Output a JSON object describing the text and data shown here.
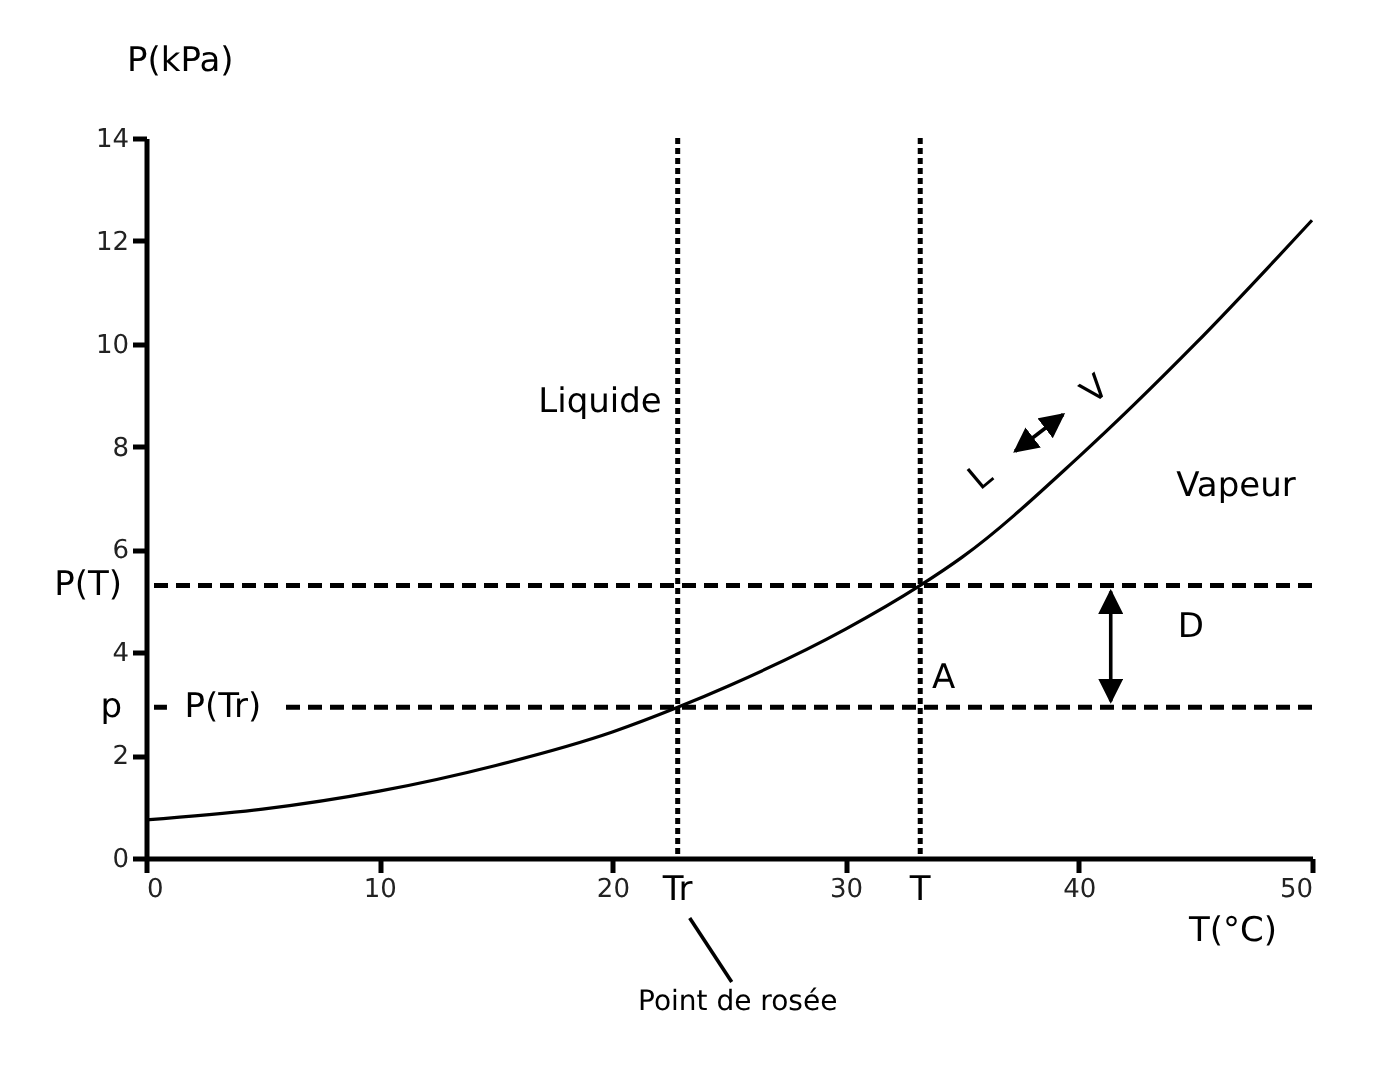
{
  "chart_data": {
    "type": "line",
    "xlabel": "T(°C)",
    "ylabel": "P(kPa)",
    "x": [
      0,
      5,
      10,
      15,
      20,
      22.8,
      25,
      30,
      33.2,
      35,
      40,
      45,
      50
    ],
    "series": [
      {
        "color": "#000000",
        "values": [
          0.74,
          0.95,
          1.3,
          1.8,
          2.45,
          2.93,
          3.35,
          4.45,
          5.3,
          5.85,
          7.8,
          10.0,
          12.4
        ]
      }
    ],
    "xlim": [
      0,
      50
    ],
    "xticks": [
      0,
      10,
      20,
      30,
      40,
      50
    ],
    "ylim": [
      0,
      14
    ],
    "yticks": [
      0,
      2,
      4,
      6,
      8,
      10,
      12,
      14
    ],
    "ref_lines": [
      {
        "axis": "y",
        "value": 5.3,
        "label": "P(T)",
        "line_style": "dashed"
      },
      {
        "axis": "y",
        "value": 2.93,
        "label": "p",
        "line_style": "dashed"
      },
      {
        "axis": "x",
        "value": 22.8,
        "label": "Tr",
        "line_style": "dotted"
      },
      {
        "axis": "x",
        "value": 33.2,
        "label": "T",
        "line_style": "dotted"
      }
    ],
    "annotations": [
      "Liquide",
      "Vapeur",
      {
        "text": "A",
        "x": 34.2,
        "y": 3.5
      },
      {
        "text": "D",
        "x": 44.8,
        "y": 4.5
      },
      {
        "text": "L",
        "x": 35.8,
        "y": 7.4
      },
      {
        "text": "V",
        "x": 40.7,
        "y": 9.1
      },
      {
        "text": "P(Tr)",
        "x": 3.3,
        "y": 2.93
      },
      "Point de rosée"
    ],
    "marker": "none",
    "line_style": "solid"
  }
}
